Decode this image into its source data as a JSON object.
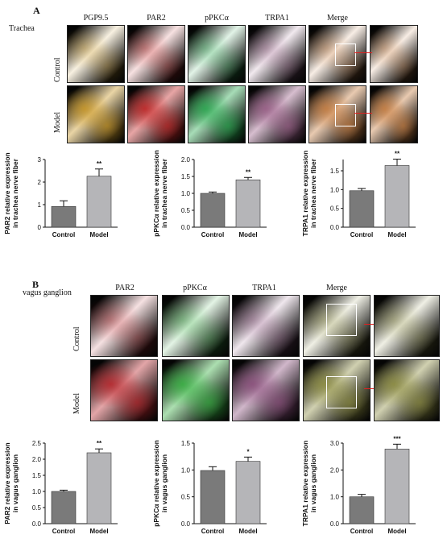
{
  "panelA": {
    "letter": "A",
    "tissue": "Trachea",
    "columns": [
      "PGP9.5",
      "PAR2",
      "pPKCα",
      "TRPA1",
      "Merge"
    ],
    "rows": [
      "Control",
      "Model"
    ],
    "tile_colors": {
      "PGP9.5": "#c9951e",
      "PAR2": "#c41e1e",
      "pPKCα": "#22a84a",
      "TRPA1": "#9a5b86",
      "Merge": "#c77a3a"
    }
  },
  "panelB": {
    "letter": "B",
    "tissue": "vagus ganglion",
    "columns": [
      "PAR2",
      "pPKCα",
      "TRPA1",
      "Merge"
    ],
    "rows": [
      "Control",
      "Model"
    ],
    "tile_colors": {
      "PAR2": "#b81e24",
      "pPKCα": "#2fae3a",
      "TRPA1": "#8a4a7a",
      "Merge": "#8a8a3a"
    }
  },
  "chart_data": [
    {
      "type": "bar",
      "categories": [
        "Control",
        "Model"
      ],
      "values": [
        0.92,
        2.26
      ],
      "errors": [
        0.25,
        0.32
      ],
      "significance": [
        "",
        "**"
      ],
      "ylabel": "PAR2 relative expression\nin trachea nerve fiber",
      "ylim": [
        0,
        3
      ],
      "yticks": [
        "0",
        "1",
        "2",
        "3"
      ],
      "colors": [
        "#7a7a7a",
        "#b5b5b8"
      ]
    },
    {
      "type": "bar",
      "categories": [
        "Control",
        "Model"
      ],
      "values": [
        1.0,
        1.4
      ],
      "errors": [
        0.04,
        0.07
      ],
      "significance": [
        "",
        "**"
      ],
      "ylabel": "pPKCα relative expression\nin trachea nerve fiber",
      "ylim": [
        0,
        2.0
      ],
      "yticks": [
        "0.0",
        "0.5",
        "1.0",
        "1.5",
        "2.0"
      ],
      "colors": [
        "#7a7a7a",
        "#b5b5b8"
      ]
    },
    {
      "type": "bar",
      "categories": [
        "Control",
        "Model"
      ],
      "values": [
        0.97,
        1.64
      ],
      "errors": [
        0.06,
        0.17
      ],
      "significance": [
        "",
        "**"
      ],
      "ylabel": "TRPA1 relative expression\nin trachea nerve fiber",
      "ylim": [
        0,
        1.8
      ],
      "yticks": [
        "0.0",
        "0.5",
        "1.0",
        "1.5"
      ],
      "colors": [
        "#7a7a7a",
        "#b5b5b8"
      ]
    },
    {
      "type": "bar",
      "categories": [
        "Control",
        "Model"
      ],
      "values": [
        1.0,
        2.2
      ],
      "errors": [
        0.04,
        0.12
      ],
      "significance": [
        "",
        "**"
      ],
      "ylabel": "PAR2 relative expression\nin vagus ganglion",
      "ylim": [
        0,
        2.5
      ],
      "yticks": [
        "0.0",
        "0.5",
        "1.0",
        "1.5",
        "2.0",
        "2.5"
      ],
      "colors": [
        "#7a7a7a",
        "#b5b5b8"
      ]
    },
    {
      "type": "bar",
      "categories": [
        "Control",
        "Model"
      ],
      "values": [
        0.99,
        1.16
      ],
      "errors": [
        0.07,
        0.08
      ],
      "significance": [
        "",
        "*"
      ],
      "ylabel": "pPKCα relative expression\nin vagus ganglion",
      "ylim": [
        0,
        1.5
      ],
      "yticks": [
        "0.0",
        "0.5",
        "1.0",
        "1.5"
      ],
      "colors": [
        "#7a7a7a",
        "#b5b5b8"
      ]
    },
    {
      "type": "bar",
      "categories": [
        "Control",
        "Model"
      ],
      "values": [
        1.0,
        2.78
      ],
      "errors": [
        0.09,
        0.18
      ],
      "significance": [
        "",
        "***"
      ],
      "ylabel": "TRPA1 relative expression\nin vagus ganglion",
      "ylim": [
        0,
        3.0
      ],
      "yticks": [
        "0.0",
        "1.0",
        "2.0",
        "3.0"
      ],
      "colors": [
        "#7a7a7a",
        "#b5b5b8"
      ]
    }
  ]
}
